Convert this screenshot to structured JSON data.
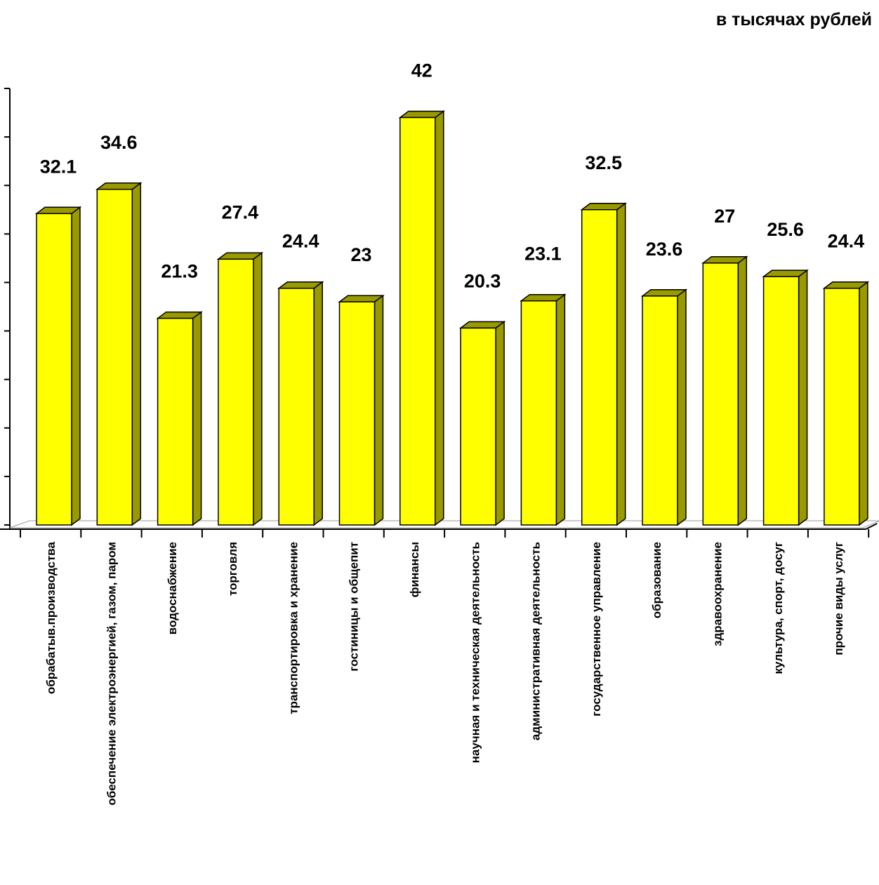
{
  "chart_data": {
    "type": "bar",
    "unit_label": "в тысячах рублей",
    "categories": [
      "обрабатыв.производства",
      "обеспечение электроэнергией, газом, паром",
      "водоснабжение",
      "торговля",
      "транспортировка и хранение",
      "гостиницы и общепит",
      "финансы",
      "научная и техническая деятельность",
      "административная деятельность",
      "государственное управление",
      "образование",
      "здравоохранение",
      "культура, спорт, досуг",
      "прочие виды услуг"
    ],
    "values": [
      32.1,
      34.6,
      21.3,
      27.4,
      24.4,
      23,
      42,
      20.3,
      23.1,
      32.5,
      23.6,
      27,
      25.6,
      24.4
    ],
    "value_labels": [
      "32.1",
      "34.6",
      "21.3",
      "27.4",
      "24.4",
      "23",
      "42",
      "20.3",
      "23.1",
      "32.5",
      "23.6",
      "27",
      "25.6",
      "24.4"
    ],
    "ylim": [
      0,
      45
    ],
    "grid": false,
    "bar_color": "#ffff00",
    "bar_side_color": "#999900",
    "bar_outline_color": "#000000"
  }
}
